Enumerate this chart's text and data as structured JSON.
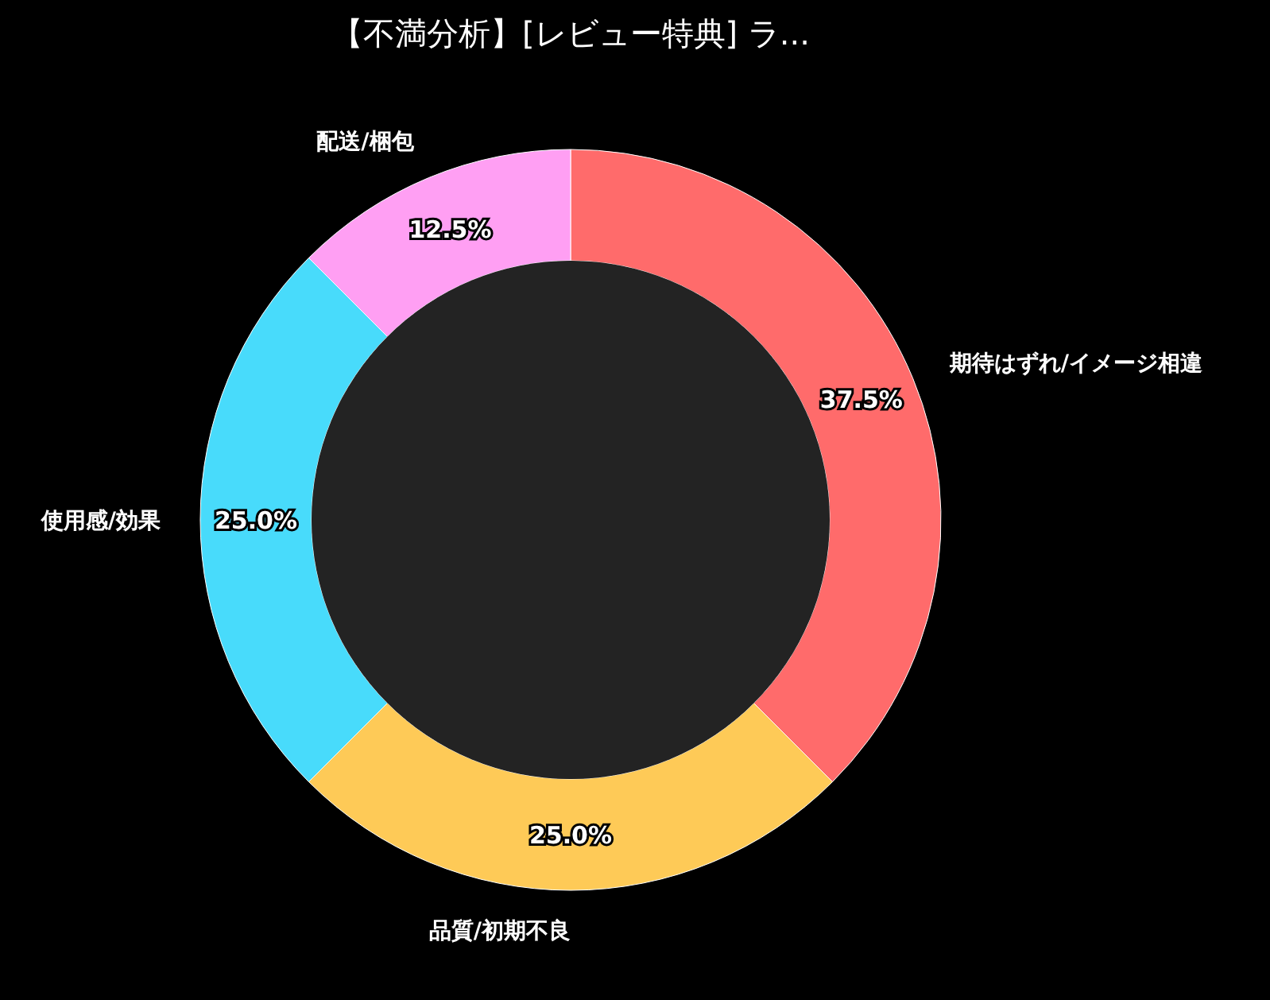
{
  "chart_data": {
    "type": "donut",
    "title": "【不満分析】[レビュー特典] ラ...",
    "categories": [
      "期待はずれ/イメージ相違",
      "品質/初期不良",
      "使用感/効果",
      "配送/梱包"
    ],
    "values": [
      37.5,
      25.0,
      25.0,
      12.5
    ],
    "colors": [
      "#ff6b6b",
      "#feca57",
      "#48dbfb",
      "#ff9ff3"
    ],
    "value_labels": [
      "37.5%",
      "25.0%",
      "25.0%",
      "12.5%"
    ]
  }
}
